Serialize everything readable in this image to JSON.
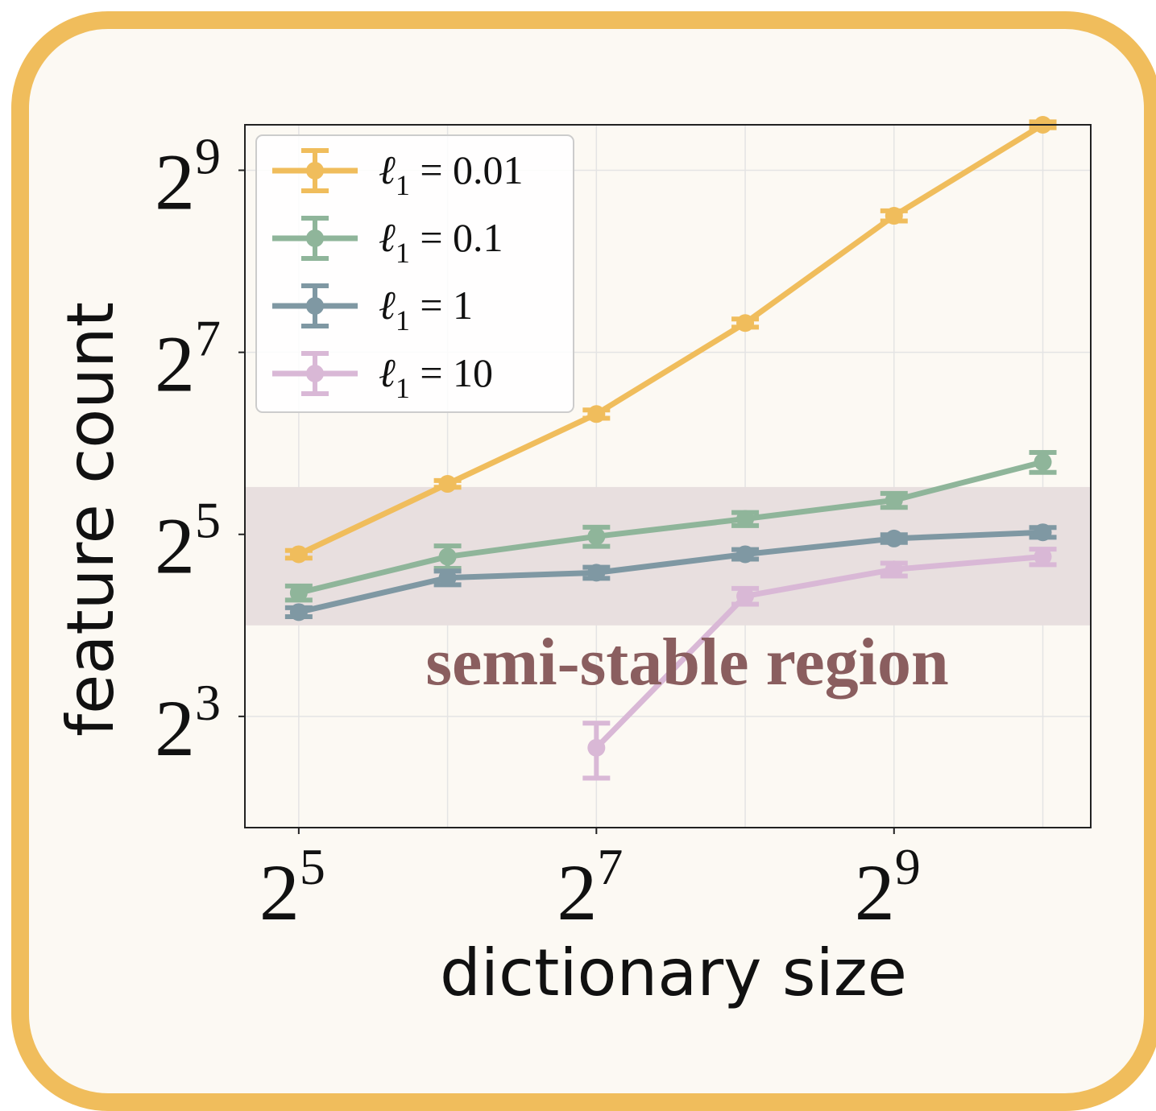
{
  "chart_data": {
    "type": "line",
    "xlabel": "dictionary size",
    "ylabel": "feature count",
    "x_scale": "log2",
    "y_scale": "log2",
    "x": [
      32,
      64,
      128,
      256,
      512,
      1024
    ],
    "x_ticks": [
      {
        "base": "2",
        "exp": "5",
        "value": 32
      },
      {
        "base": "2",
        "exp": "7",
        "value": 128
      },
      {
        "base": "2",
        "exp": "9",
        "value": 512
      }
    ],
    "y_ticks": [
      {
        "base": "2",
        "exp": "3",
        "value": 8
      },
      {
        "base": "2",
        "exp": "5",
        "value": 32
      },
      {
        "base": "2",
        "exp": "7",
        "value": 128
      },
      {
        "base": "2",
        "exp": "9",
        "value": 512
      }
    ],
    "xlim": [
      24.9,
      1280
    ],
    "ylim": [
      3.43,
      724
    ],
    "grid": true,
    "legend": "top-left",
    "band": {
      "label": "semi-stable region",
      "y_low": 16.0,
      "y_high": 45.9,
      "color": "#e8dfdf",
      "label_color": "#8a5e5f"
    },
    "series": [
      {
        "name": "ℓ1 = 0.01",
        "name_base": "ℓ",
        "name_sub": "1",
        "name_rest": " = 0.01",
        "color": "#f0bd5c",
        "x": [
          32,
          64,
          128,
          256,
          512,
          1024
        ],
        "values": [
          27.5,
          47.0,
          80.0,
          160.0,
          362.0,
          724.0
        ],
        "err": [
          0.8,
          1.2,
          2.5,
          5.0,
          14.0,
          16.0
        ]
      },
      {
        "name": "ℓ1 = 0.1",
        "name_base": "ℓ",
        "name_sub": "1",
        "name_rest": " = 0.1",
        "color": "#8fb59a",
        "x": [
          32,
          64,
          128,
          256,
          512,
          1024
        ],
        "values": [
          20.5,
          27.0,
          31.5,
          36.0,
          41.5,
          55.5
        ],
        "err": [
          1.1,
          2.3,
          2.3,
          1.8,
          2.2,
          4.2
        ]
      },
      {
        "name": "ℓ1 = 1",
        "name_base": "ℓ",
        "name_sub": "1",
        "name_rest": " = 1",
        "color": "#7f98a3",
        "x": [
          32,
          64,
          128,
          256,
          512,
          1024
        ],
        "values": [
          17.7,
          23.0,
          23.9,
          27.5,
          31.0,
          32.5
        ],
        "err": [
          0.6,
          1.2,
          1.0,
          1.0,
          0.9,
          1.2
        ]
      },
      {
        "name": "ℓ1 = 10",
        "name_base": "ℓ",
        "name_sub": "1",
        "name_rest": " = 10",
        "color": "#d9b8d6",
        "x": [
          128,
          256,
          512,
          1024
        ],
        "values": [
          6.3,
          20.0,
          24.5,
          27.0
        ],
        "err": [
          1.3,
          1.2,
          1.2,
          1.6
        ]
      }
    ]
  }
}
